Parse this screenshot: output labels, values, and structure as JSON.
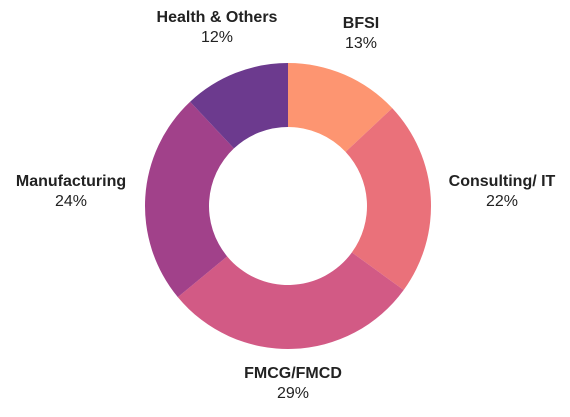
{
  "chart_data": {
    "type": "pie",
    "variant": "donut",
    "slices": [
      {
        "label": "BFSI",
        "value": 13,
        "display": "13%",
        "color": "#FD9571"
      },
      {
        "label": "Consulting/ IT",
        "value": 22,
        "display": "22%",
        "color": "#EA717A"
      },
      {
        "label": "FMCG/FMCD",
        "value": 29,
        "display": "29%",
        "color": "#D25A85"
      },
      {
        "label": "Manufacturing",
        "value": 24,
        "display": "24%",
        "color": "#A1418A"
      },
      {
        "label": "Health & Others",
        "value": 12,
        "display": "12%",
        "color": "#6C3A8E"
      }
    ]
  }
}
